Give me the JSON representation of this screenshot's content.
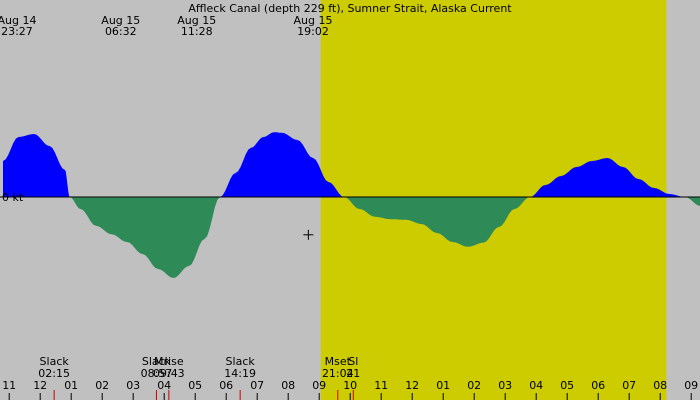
{
  "chart_data": {
    "type": "area",
    "title": "Affleck Canal (depth 229 ft), Sumner Strait, Alaska Current",
    "ylabel": "",
    "xlabel": "",
    "x_unit": "hours since Aug 14 10:00",
    "zero_label": "0 kt",
    "day_span": {
      "start": 20.5,
      "end": 42.8
    },
    "current_curve": {
      "x": [
        0,
        1,
        2,
        3,
        4,
        4.3,
        5,
        6,
        7,
        8,
        9,
        10,
        11,
        12,
        13,
        14,
        15,
        16,
        16.8,
        17.5,
        18,
        19,
        20,
        21,
        22,
        23,
        24,
        25,
        26,
        27,
        28,
        29,
        30,
        31,
        32,
        33,
        34,
        35,
        36,
        37,
        38,
        39,
        40,
        41,
        42,
        43,
        44,
        45,
        45.5
      ],
      "y": [
        0.6,
        1.0,
        1.05,
        0.85,
        0.45,
        0.0,
        -0.2,
        -0.48,
        -0.62,
        -0.75,
        -0.95,
        -1.2,
        -1.35,
        -1.15,
        -0.7,
        0.0,
        0.4,
        0.82,
        1.0,
        1.08,
        1.07,
        0.95,
        0.65,
        0.25,
        0.0,
        -0.2,
        -0.33,
        -0.37,
        -0.38,
        -0.45,
        -0.6,
        -0.75,
        -0.83,
        -0.76,
        -0.5,
        -0.2,
        0.0,
        0.2,
        0.35,
        0.5,
        0.6,
        0.65,
        0.5,
        0.3,
        0.15,
        0.05,
        0.0,
        -0.15,
        -0.2
      ],
      "ylim": [
        -2.5,
        2.5
      ],
      "flood_color": "#0000ff",
      "ebb_color": "#2e8b57"
    },
    "now_marker": {
      "x": 19.7,
      "y": -0.63
    },
    "top_labels": [
      {
        "line1": "Aug 14",
        "line2": "23:27",
        "x": 0.9
      },
      {
        "line1": "Aug 15",
        "line2": "06:32",
        "x": 7.6
      },
      {
        "line1": "Aug 15",
        "line2": "11:28",
        "x": 12.5
      },
      {
        "line1": "Aug 15",
        "line2": "19:02",
        "x": 20.0
      }
    ],
    "bottom_events": [
      {
        "line1": "Slack",
        "line2": "02:15",
        "x": 3.3
      },
      {
        "line1": "Slack",
        "line2": "08:57",
        "x": 9.9
      },
      {
        "line1": "Mrise",
        "line2": "09:43",
        "x": 10.7
      },
      {
        "line1": "Slack",
        "line2": "14:19",
        "x": 15.3
      },
      {
        "line1": "Mset",
        "line2": "21:04",
        "x": 21.6
      },
      {
        "line1": "Sl",
        "line2": "21",
        "x": 22.6
      }
    ],
    "hour_ticks": [
      "11",
      "12",
      "01",
      "02",
      "03",
      "04",
      "05",
      "06",
      "07",
      "08",
      "09",
      "10",
      "11",
      "12",
      "01",
      "02",
      "03",
      "04",
      "05",
      "06",
      "07",
      "08",
      "09"
    ],
    "colors": {
      "night": "#c0c0c0",
      "day": "#cccc00"
    }
  }
}
